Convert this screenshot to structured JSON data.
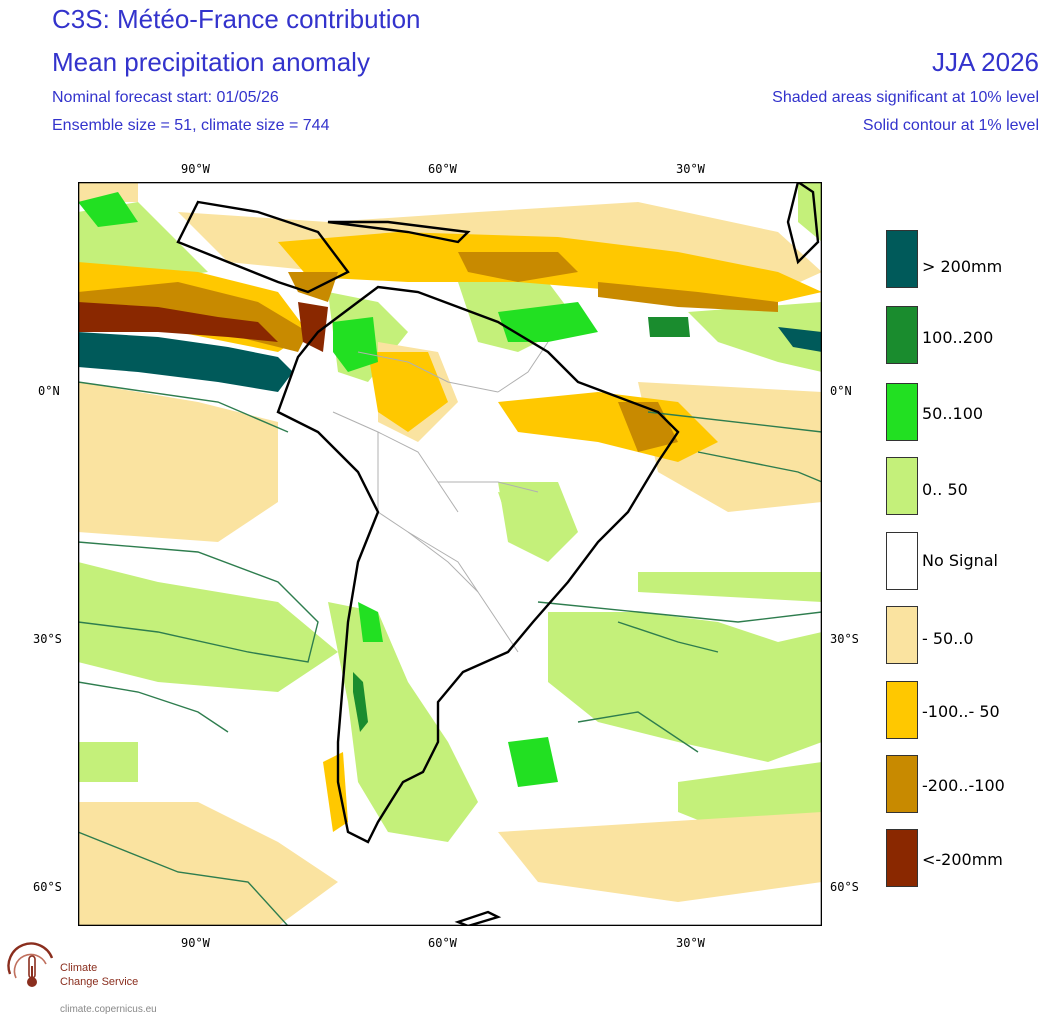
{
  "header": {
    "title": "C3S: Météo-France contribution",
    "subtitle": "Mean precipitation anomaly",
    "forecast_start": "Nominal forecast start: 01/05/26",
    "ensemble": "Ensemble size = 51, climate size = 744",
    "period": "JJA 2026",
    "shaded_note": "Shaded areas significant at 10% level",
    "contour_note": "Solid contour at 1% level"
  },
  "axes": {
    "top_lon": [
      "90°W",
      "60°W",
      "30°W"
    ],
    "bottom_lon": [
      "90°W",
      "60°W",
      "30°W"
    ],
    "left_lat": [
      "0°N",
      "30°S",
      "60°S"
    ],
    "right_lat": [
      "0°N",
      "30°S",
      "60°S"
    ]
  },
  "legend": [
    {
      "label": "> 200mm",
      "color": "#005a5a"
    },
    {
      "label": "100..200",
      "color": "#1a8c2e"
    },
    {
      "label": " 50..100",
      "color": "#22e022"
    },
    {
      "label": "0.. 50",
      "color": "#c4f07a"
    },
    {
      "label": "No Signal",
      "color": "#ffffff"
    },
    {
      "label": "- 50..0",
      "color": "#fae3a0"
    },
    {
      "label": "-100..- 50",
      "color": "#ffc800"
    },
    {
      "label": "-200..-100",
      "color": "#c88a00"
    },
    {
      "label": "<-200mm",
      "color": "#8a2800"
    }
  ],
  "logo": {
    "line1": "Climate",
    "line2": "Change Service",
    "url": "climate.copernicus.eu"
  },
  "colors": {
    "text": "#3333cc",
    "coast": "#000000",
    "borders": "#b0b0b0",
    "contour": "#2e7d4e"
  }
}
